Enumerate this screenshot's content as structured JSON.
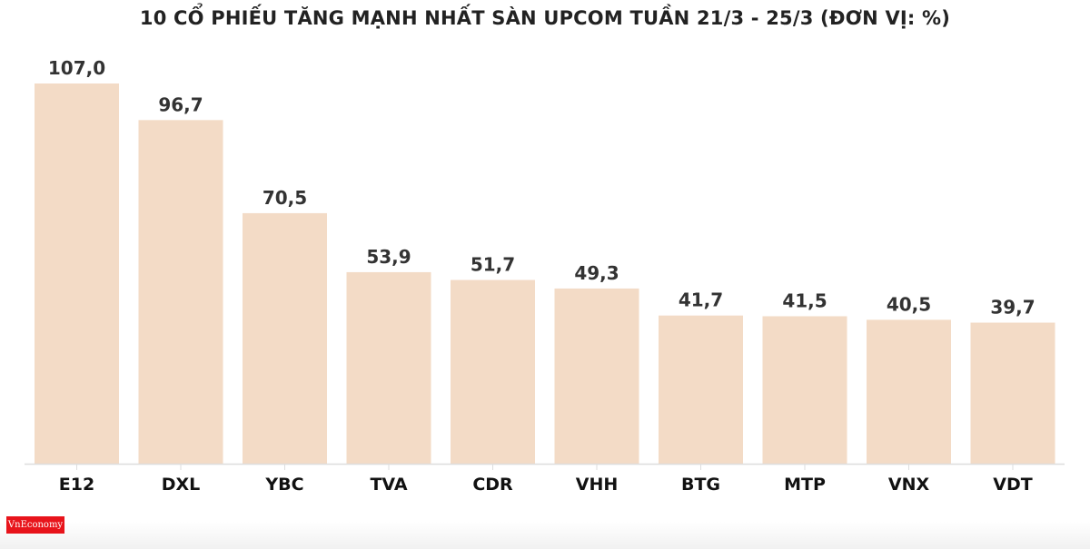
{
  "chart_data": {
    "type": "bar",
    "title": "10 CỔ PHIẾU TĂNG MẠNH NHẤT SÀN UPCOM TUẦN 21/3 - 25/3 (ĐƠN VỊ: %)",
    "categories": [
      "E12",
      "DXL",
      "YBC",
      "TVA",
      "CDR",
      "VHH",
      "BTG",
      "MTP",
      "VNX",
      "VDT"
    ],
    "values": [
      107.0,
      96.7,
      70.5,
      53.9,
      51.7,
      49.3,
      41.7,
      41.5,
      40.5,
      39.7
    ],
    "data_labels": [
      "107,0",
      "96,7",
      "70,5",
      "53,9",
      "51,7",
      "49,3",
      "41,7",
      "41,5",
      "40,5",
      "39,7"
    ],
    "xlabel": "",
    "ylabel": "",
    "ylim": [
      0,
      107
    ],
    "grid": false,
    "bar_color": "#f3dbc6"
  },
  "logo": {
    "text": "VnEconomy",
    "color": "#e8141b"
  }
}
